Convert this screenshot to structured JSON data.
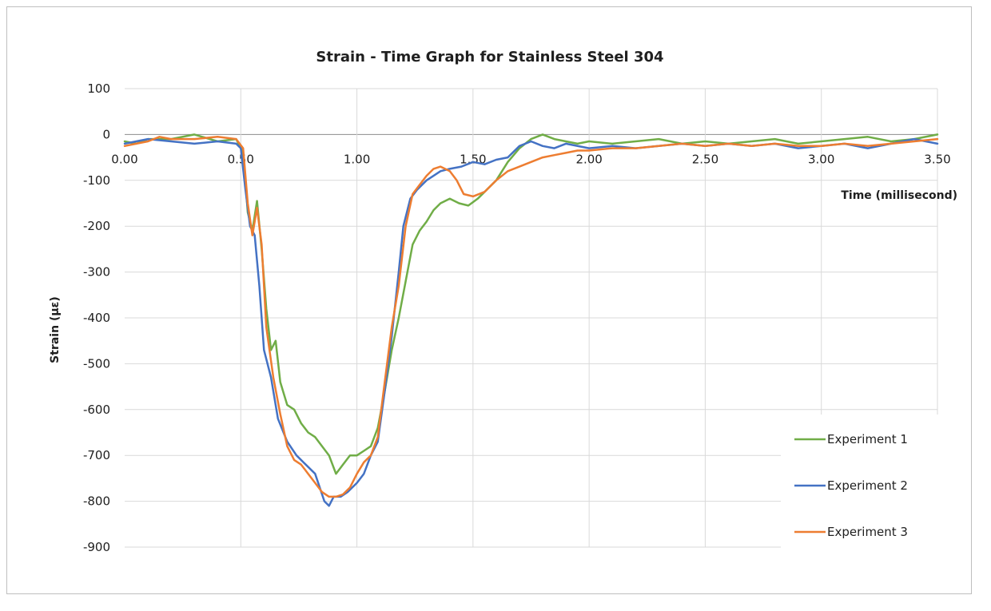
{
  "chart_data": {
    "type": "line",
    "title": "Strain - Time Graph for Stainless Steel 304",
    "xlabel": "Time (millisecond)",
    "ylabel": "Strain (με)",
    "xlim": [
      0,
      3.5
    ],
    "ylim": [
      -900,
      100
    ],
    "x_ticks": [
      "0.00",
      "0.50",
      "1.00",
      "1.50",
      "2.00",
      "2.50",
      "3.00",
      "3.50"
    ],
    "y_ticks": [
      "100",
      "0",
      "-100",
      "-200",
      "-300",
      "-400",
      "-500",
      "-600",
      "-700",
      "-800",
      "-900"
    ],
    "grid": true,
    "legend_position": "bottom-right",
    "series": [
      {
        "name": "Experiment 1",
        "color": "#70ad47",
        "points": [
          [
            0.0,
            -15
          ],
          [
            0.05,
            -20
          ],
          [
            0.1,
            -10
          ],
          [
            0.2,
            -10
          ],
          [
            0.3,
            0
          ],
          [
            0.4,
            -15
          ],
          [
            0.48,
            -10
          ],
          [
            0.51,
            -40
          ],
          [
            0.53,
            -170
          ],
          [
            0.55,
            -210
          ],
          [
            0.57,
            -145
          ],
          [
            0.59,
            -250
          ],
          [
            0.61,
            -380
          ],
          [
            0.63,
            -470
          ],
          [
            0.65,
            -450
          ],
          [
            0.67,
            -540
          ],
          [
            0.7,
            -590
          ],
          [
            0.73,
            -600
          ],
          [
            0.76,
            -630
          ],
          [
            0.79,
            -650
          ],
          [
            0.82,
            -660
          ],
          [
            0.85,
            -680
          ],
          [
            0.88,
            -700
          ],
          [
            0.91,
            -740
          ],
          [
            0.94,
            -720
          ],
          [
            0.97,
            -700
          ],
          [
            1.0,
            -700
          ],
          [
            1.03,
            -690
          ],
          [
            1.06,
            -680
          ],
          [
            1.09,
            -640
          ],
          [
            1.12,
            -560
          ],
          [
            1.15,
            -470
          ],
          [
            1.18,
            -400
          ],
          [
            1.21,
            -320
          ],
          [
            1.24,
            -240
          ],
          [
            1.27,
            -210
          ],
          [
            1.3,
            -190
          ],
          [
            1.33,
            -165
          ],
          [
            1.36,
            -150
          ],
          [
            1.4,
            -140
          ],
          [
            1.44,
            -150
          ],
          [
            1.48,
            -155
          ],
          [
            1.52,
            -140
          ],
          [
            1.56,
            -120
          ],
          [
            1.6,
            -100
          ],
          [
            1.65,
            -60
          ],
          [
            1.7,
            -30
          ],
          [
            1.75,
            -10
          ],
          [
            1.8,
            0
          ],
          [
            1.85,
            -10
          ],
          [
            1.9,
            -15
          ],
          [
            1.95,
            -20
          ],
          [
            2.0,
            -15
          ],
          [
            2.1,
            -20
          ],
          [
            2.2,
            -15
          ],
          [
            2.3,
            -10
          ],
          [
            2.4,
            -20
          ],
          [
            2.5,
            -15
          ],
          [
            2.6,
            -20
          ],
          [
            2.7,
            -15
          ],
          [
            2.8,
            -10
          ],
          [
            2.9,
            -20
          ],
          [
            3.0,
            -15
          ],
          [
            3.1,
            -10
          ],
          [
            3.2,
            -5
          ],
          [
            3.3,
            -15
          ],
          [
            3.4,
            -10
          ],
          [
            3.5,
            0
          ]
        ]
      },
      {
        "name": "Experiment 2",
        "color": "#4472c4",
        "points": [
          [
            0.0,
            -20
          ],
          [
            0.05,
            -15
          ],
          [
            0.1,
            -10
          ],
          [
            0.2,
            -15
          ],
          [
            0.3,
            -20
          ],
          [
            0.4,
            -15
          ],
          [
            0.48,
            -20
          ],
          [
            0.5,
            -30
          ],
          [
            0.52,
            -120
          ],
          [
            0.54,
            -200
          ],
          [
            0.56,
            -220
          ],
          [
            0.58,
            -330
          ],
          [
            0.6,
            -470
          ],
          [
            0.63,
            -530
          ],
          [
            0.66,
            -620
          ],
          [
            0.7,
            -670
          ],
          [
            0.74,
            -700
          ],
          [
            0.78,
            -720
          ],
          [
            0.82,
            -740
          ],
          [
            0.86,
            -800
          ],
          [
            0.88,
            -810
          ],
          [
            0.9,
            -790
          ],
          [
            0.93,
            -790
          ],
          [
            0.96,
            -780
          ],
          [
            1.0,
            -760
          ],
          [
            1.03,
            -740
          ],
          [
            1.06,
            -700
          ],
          [
            1.09,
            -670
          ],
          [
            1.12,
            -560
          ],
          [
            1.15,
            -440
          ],
          [
            1.18,
            -300
          ],
          [
            1.2,
            -200
          ],
          [
            1.23,
            -140
          ],
          [
            1.26,
            -120
          ],
          [
            1.3,
            -100
          ],
          [
            1.33,
            -90
          ],
          [
            1.36,
            -80
          ],
          [
            1.4,
            -75
          ],
          [
            1.45,
            -70
          ],
          [
            1.5,
            -60
          ],
          [
            1.55,
            -65
          ],
          [
            1.6,
            -55
          ],
          [
            1.65,
            -50
          ],
          [
            1.7,
            -25
          ],
          [
            1.75,
            -15
          ],
          [
            1.8,
            -25
          ],
          [
            1.85,
            -30
          ],
          [
            1.9,
            -20
          ],
          [
            2.0,
            -30
          ],
          [
            2.1,
            -25
          ],
          [
            2.2,
            -30
          ],
          [
            2.3,
            -25
          ],
          [
            2.4,
            -20
          ],
          [
            2.5,
            -25
          ],
          [
            2.6,
            -20
          ],
          [
            2.7,
            -25
          ],
          [
            2.8,
            -20
          ],
          [
            2.9,
            -30
          ],
          [
            3.0,
            -25
          ],
          [
            3.1,
            -20
          ],
          [
            3.2,
            -30
          ],
          [
            3.3,
            -20
          ],
          [
            3.4,
            -10
          ],
          [
            3.5,
            -20
          ]
        ]
      },
      {
        "name": "Experiment 3",
        "color": "#ed7d31",
        "points": [
          [
            0.0,
            -25
          ],
          [
            0.05,
            -20
          ],
          [
            0.1,
            -15
          ],
          [
            0.15,
            -5
          ],
          [
            0.2,
            -10
          ],
          [
            0.3,
            -10
          ],
          [
            0.4,
            -5
          ],
          [
            0.48,
            -10
          ],
          [
            0.51,
            -30
          ],
          [
            0.53,
            -150
          ],
          [
            0.55,
            -220
          ],
          [
            0.57,
            -160
          ],
          [
            0.59,
            -240
          ],
          [
            0.61,
            -420
          ],
          [
            0.64,
            -530
          ],
          [
            0.67,
            -610
          ],
          [
            0.7,
            -680
          ],
          [
            0.73,
            -710
          ],
          [
            0.76,
            -720
          ],
          [
            0.79,
            -740
          ],
          [
            0.82,
            -760
          ],
          [
            0.85,
            -780
          ],
          [
            0.88,
            -790
          ],
          [
            0.91,
            -790
          ],
          [
            0.94,
            -785
          ],
          [
            0.97,
            -770
          ],
          [
            1.0,
            -740
          ],
          [
            1.03,
            -715
          ],
          [
            1.06,
            -700
          ],
          [
            1.09,
            -660
          ],
          [
            1.12,
            -540
          ],
          [
            1.15,
            -420
          ],
          [
            1.18,
            -330
          ],
          [
            1.21,
            -200
          ],
          [
            1.24,
            -130
          ],
          [
            1.27,
            -110
          ],
          [
            1.3,
            -90
          ],
          [
            1.33,
            -75
          ],
          [
            1.36,
            -70
          ],
          [
            1.4,
            -80
          ],
          [
            1.43,
            -100
          ],
          [
            1.46,
            -130
          ],
          [
            1.5,
            -135
          ],
          [
            1.55,
            -125
          ],
          [
            1.6,
            -100
          ],
          [
            1.65,
            -80
          ],
          [
            1.7,
            -70
          ],
          [
            1.75,
            -60
          ],
          [
            1.8,
            -50
          ],
          [
            1.85,
            -45
          ],
          [
            1.9,
            -40
          ],
          [
            1.95,
            -35
          ],
          [
            2.0,
            -35
          ],
          [
            2.1,
            -30
          ],
          [
            2.2,
            -30
          ],
          [
            2.3,
            -25
          ],
          [
            2.4,
            -20
          ],
          [
            2.5,
            -25
          ],
          [
            2.6,
            -20
          ],
          [
            2.7,
            -25
          ],
          [
            2.8,
            -20
          ],
          [
            2.9,
            -25
          ],
          [
            3.0,
            -25
          ],
          [
            3.1,
            -20
          ],
          [
            3.2,
            -25
          ],
          [
            3.3,
            -20
          ],
          [
            3.4,
            -15
          ],
          [
            3.5,
            -10
          ]
        ]
      }
    ]
  }
}
